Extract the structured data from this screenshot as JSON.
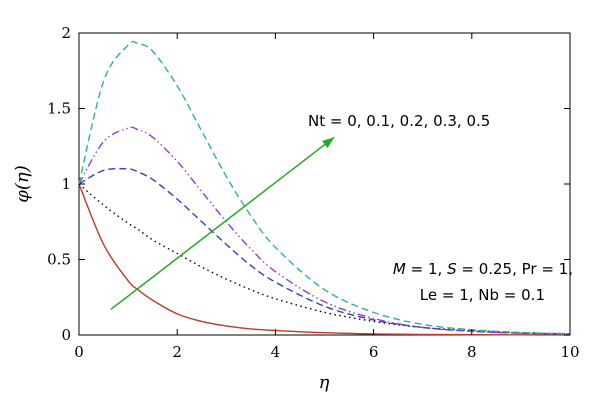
{
  "chart_data": {
    "type": "line",
    "xlabel": "η",
    "ylabel": "φ(η)",
    "xlim": [
      0,
      10
    ],
    "ylim": [
      0,
      2
    ],
    "x_ticks": [
      "0",
      "2",
      "4",
      "6",
      "8",
      "10"
    ],
    "y_ticks": [
      "0",
      "0.5",
      "1",
      "1.5",
      "2"
    ],
    "x": [
      0,
      0.5,
      1,
      1.2,
      1.5,
      2,
      2.5,
      3,
      3.5,
      4,
      5,
      6,
      7,
      8,
      9,
      10
    ],
    "series": [
      {
        "color": "#c0392b",
        "dash": "solid",
        "values": [
          1,
          0.6,
          0.36,
          0.3,
          0.23,
          0.14,
          0.09,
          0.06,
          0.04,
          0.03,
          0.015,
          0.007,
          0.004,
          0.002,
          0.001,
          0.0005
        ]
      },
      {
        "color": "#000000",
        "dash": "dotted",
        "values": [
          1,
          0.86,
          0.74,
          0.7,
          0.63,
          0.54,
          0.45,
          0.37,
          0.3,
          0.24,
          0.15,
          0.09,
          0.05,
          0.03,
          0.015,
          0.008
        ]
      },
      {
        "color": "#2e3fbf",
        "dash": "dashed",
        "values": [
          1,
          1.09,
          1.1,
          1.08,
          1.03,
          0.9,
          0.75,
          0.6,
          0.46,
          0.35,
          0.19,
          0.1,
          0.05,
          0.025,
          0.012,
          0.006
        ]
      },
      {
        "color": "#8e3fd6",
        "dash": "dashdotdot",
        "values": [
          1,
          1.28,
          1.37,
          1.36,
          1.31,
          1.15,
          0.95,
          0.75,
          0.57,
          0.42,
          0.22,
          0.11,
          0.05,
          0.025,
          0.012,
          0.006
        ]
      },
      {
        "color": "#2bb58a",
        "dash": "dashed",
        "values": [
          1,
          1.68,
          1.92,
          1.93,
          1.88,
          1.65,
          1.35,
          1.05,
          0.79,
          0.58,
          0.3,
          0.15,
          0.07,
          0.035,
          0.017,
          0.008
        ]
      }
    ],
    "arrow": {
      "color": "#22aa22",
      "from": [
        0.65,
        0.17
      ],
      "to": [
        5.2,
        1.31
      ]
    },
    "annotations": {
      "nt_label": "Nt = 0, 0.1, 0.2, 0.3, 0.5",
      "params_line1_M": "M",
      "params_line1_rest1": " = 1, ",
      "params_line1_S": "S",
      "params_line1_rest2": " = 0.25, Pr = 1,",
      "params_line2": "Le = 1, Nb = 0.1"
    }
  }
}
